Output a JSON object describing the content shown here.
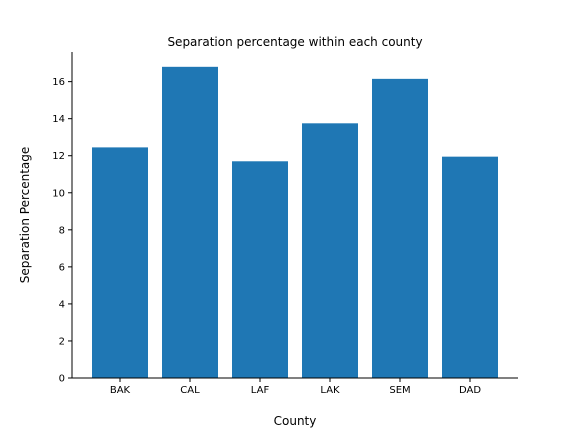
{
  "chart_data": {
    "type": "bar",
    "title": "Separation percentage within each county",
    "xlabel": "County",
    "ylabel": "Separation Percentage",
    "categories": [
      "BAK",
      "CAL",
      "LAF",
      "LAK",
      "SEM",
      "DAD"
    ],
    "values": [
      12.45,
      16.8,
      11.7,
      13.75,
      16.15,
      11.95
    ],
    "ylim": [
      0,
      17.6
    ],
    "yticks": [
      0,
      2,
      4,
      6,
      8,
      10,
      12,
      14,
      16
    ],
    "grid": false,
    "legend": "none",
    "bar_color": "#1f77b4"
  }
}
